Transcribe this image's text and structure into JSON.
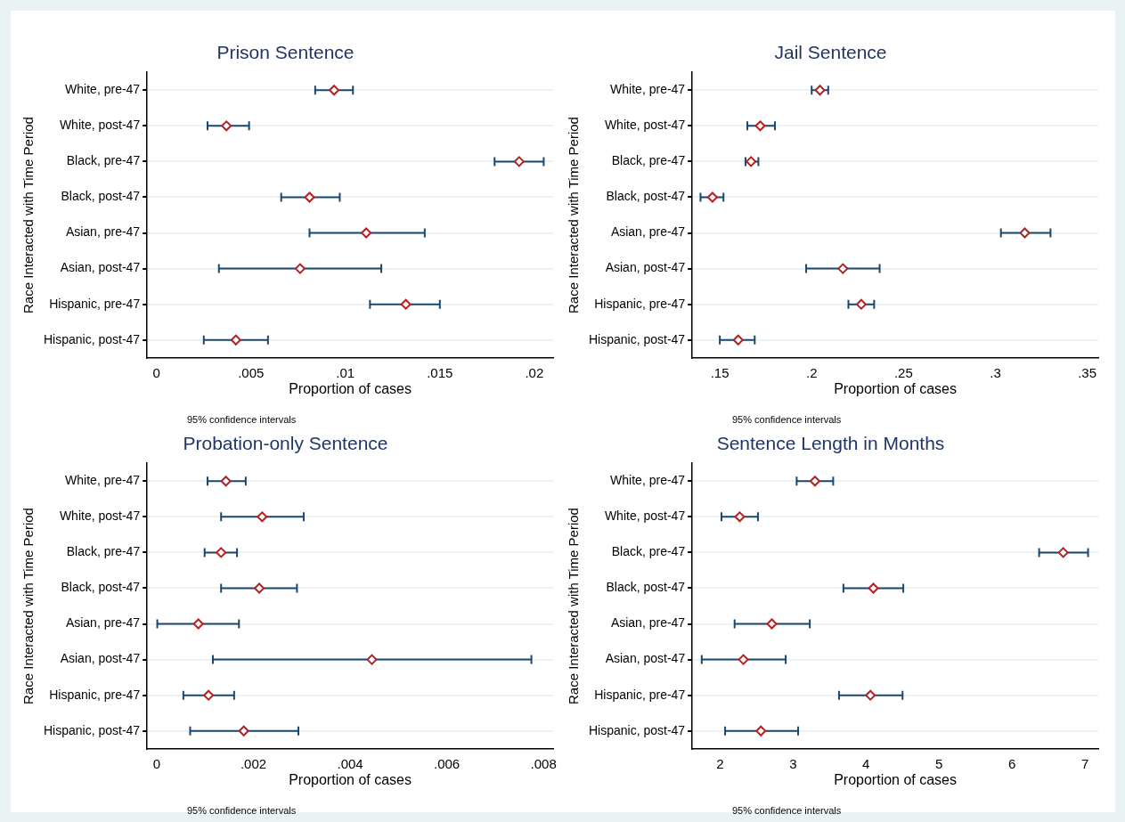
{
  "chart_data": [
    {
      "type": "scatter",
      "orientation": "horizontal",
      "title": "Prison Sentence",
      "xlabel": "Proportion of cases",
      "ylabel": "Race Interacted with Time Period",
      "annotations": [
        "95% confidence intervals"
      ],
      "categories": [
        "White, pre-47",
        "White, post-47",
        "Black, pre-47",
        "Black, post-47",
        "Asian, pre-47",
        "Asian, post-47",
        "Hispanic, pre-47",
        "Hispanic, post-47"
      ],
      "series": [
        {
          "color": "#b22222",
          "values": [
            0.0094,
            0.0037,
            0.0192,
            0.0081,
            0.0111,
            0.0076,
            0.0132,
            0.0042
          ],
          "errors": [
            [
              0.0084,
              0.0104
            ],
            [
              0.0027,
              0.0049
            ],
            [
              0.0179,
              0.0205
            ],
            [
              0.0066,
              0.0097
            ],
            [
              0.0081,
              0.0142
            ],
            [
              0.0033,
              0.0119
            ],
            [
              0.0113,
              0.015
            ],
            [
              0.0025,
              0.0059
            ]
          ]
        }
      ],
      "xlim": [
        -0.0005,
        0.021
      ],
      "xticks": [
        0,
        {
          "value": 0.005,
          "label": ".005"
        },
        {
          "value": 0.01,
          "label": ".01"
        },
        {
          "value": 0.015,
          "label": ".015"
        },
        {
          "value": 0.02,
          "label": ".02"
        }
      ],
      "grid": "y",
      "legend": false,
      "marker": "diamond"
    },
    {
      "type": "scatter",
      "orientation": "horizontal",
      "title": "Jail Sentence",
      "xlabel": "Proportion of cases",
      "ylabel": "Race Interacted with Time Period",
      "annotations": [
        "95% confidence intervals"
      ],
      "categories": [
        "White, pre-47",
        "White, post-47",
        "Black, pre-47",
        "Black, post-47",
        "Asian, pre-47",
        "Asian, post-47",
        "Hispanic, pre-47",
        "Hispanic, post-47"
      ],
      "series": [
        {
          "color": "#b22222",
          "values": [
            0.2045,
            0.172,
            0.167,
            0.146,
            0.316,
            0.217,
            0.227,
            0.16
          ],
          "errors": [
            [
              0.2,
              0.209
            ],
            [
              0.165,
              0.18
            ],
            [
              0.164,
              0.171
            ],
            [
              0.1395,
              0.152
            ],
            [
              0.303,
              0.33
            ],
            [
              0.197,
              0.237
            ],
            [
              0.22,
              0.234
            ],
            [
              0.15,
              0.169
            ]
          ]
        }
      ],
      "xlim": [
        0.135,
        0.356
      ],
      "xticks": [
        {
          "value": 0.15,
          "label": ".15"
        },
        {
          "value": 0.2,
          "label": ".2"
        },
        {
          "value": 0.25,
          "label": ".25"
        },
        {
          "value": 0.3,
          "label": ".3"
        },
        {
          "value": 0.35,
          "label": ".35"
        }
      ],
      "grid": "y",
      "legend": false,
      "marker": "diamond"
    },
    {
      "type": "scatter",
      "orientation": "horizontal",
      "title": "Probation-only Sentence",
      "xlabel": "Proportion of cases",
      "ylabel": "Race Interacted with Time Period",
      "annotations": [
        "95% confidence intervals"
      ],
      "categories": [
        "White, pre-47",
        "White, post-47",
        "Black, pre-47",
        "Black, post-47",
        "Asian, pre-47",
        "Asian, post-47",
        "Hispanic, pre-47",
        "Hispanic, post-47"
      ],
      "series": [
        {
          "color": "#b22222",
          "values": [
            0.00143,
            0.00218,
            0.00133,
            0.00212,
            0.00086,
            0.00445,
            0.00107,
            0.0018
          ],
          "errors": [
            [
              0.00105,
              0.00184
            ],
            [
              0.00133,
              0.00304
            ],
            [
              0.00099,
              0.00166
            ],
            [
              0.00133,
              0.0029
            ],
            [
              1e-05,
              0.0017
            ],
            [
              0.00116,
              0.00775
            ],
            [
              0.00055,
              0.0016
            ],
            [
              0.00069,
              0.00293
            ]
          ]
        }
      ],
      "xlim": [
        -0.0002,
        0.0082
      ],
      "xticks": [
        0,
        {
          "value": 0.002,
          "label": ".002"
        },
        {
          "value": 0.004,
          "label": ".004"
        },
        {
          "value": 0.006,
          "label": ".006"
        },
        {
          "value": 0.008,
          "label": ".008"
        }
      ],
      "grid": "y",
      "legend": false,
      "marker": "diamond"
    },
    {
      "type": "scatter",
      "orientation": "horizontal",
      "title": "Sentence Length in Months",
      "xlabel": "Proportion of cases",
      "ylabel": "Race Interacted with Time Period",
      "annotations": [
        "95% confidence intervals"
      ],
      "categories": [
        "White, pre-47",
        "White, post-47",
        "Black, pre-47",
        "Black, post-47",
        "Asian, pre-47",
        "Asian, post-47",
        "Hispanic, pre-47",
        "Hispanic, post-47"
      ],
      "series": [
        {
          "color": "#b22222",
          "values": [
            3.3,
            2.27,
            6.7,
            4.1,
            2.71,
            2.32,
            4.06,
            2.56
          ],
          "errors": [
            [
              3.05,
              3.55
            ],
            [
              2.02,
              2.52
            ],
            [
              6.37,
              7.04
            ],
            [
              3.69,
              4.51
            ],
            [
              2.2,
              3.23
            ],
            [
              1.75,
              2.9
            ],
            [
              3.63,
              4.5
            ],
            [
              2.07,
              3.07
            ]
          ]
        }
      ],
      "xlim": [
        1.62,
        7.18
      ],
      "xticks": [
        2,
        3,
        4,
        5,
        6,
        7
      ],
      "grid": "y",
      "legend": false,
      "marker": "diamond"
    }
  ]
}
